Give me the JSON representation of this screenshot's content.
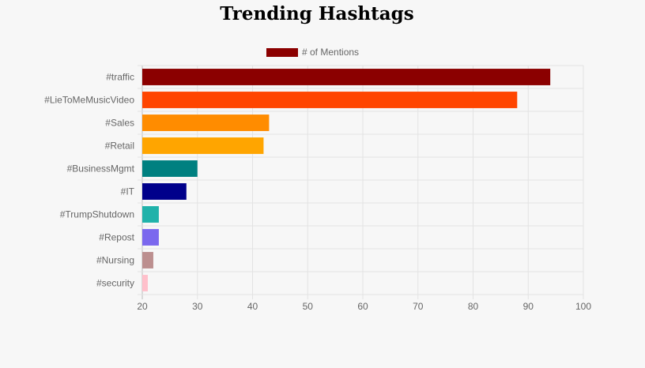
{
  "chart_data": {
    "type": "bar",
    "orientation": "horizontal",
    "title": "Trending Hashtags",
    "categories": [
      "#traffic",
      "#LieToMeMusicVideo",
      "#Sales",
      "#Retail",
      "#BusinessMgmt",
      "#IT",
      "#TrumpShutdown",
      "#Repost",
      "#Nursing",
      "#security"
    ],
    "series": [
      {
        "name": "# of Mentions",
        "values": [
          94,
          88,
          43,
          42,
          30,
          28,
          23,
          23,
          22,
          21
        ],
        "colors": [
          "#8b0000",
          "#ff4500",
          "#ff8c00",
          "#ffa500",
          "#008080",
          "#00008b",
          "#20b2aa",
          "#7b68ee",
          "#bc8f8f",
          "#ffc0cb"
        ]
      }
    ],
    "xlim": [
      20,
      100
    ],
    "xticks": [
      20,
      30,
      40,
      50,
      60,
      70,
      80,
      90,
      100
    ],
    "grid": true,
    "legend": "top",
    "legend_color": "#8b0000"
  }
}
